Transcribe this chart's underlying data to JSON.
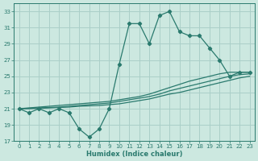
{
  "xlabel": "Humidex (Indice chaleur)",
  "bg_color": "#cce8e0",
  "grid_color": "#aacfc8",
  "line_color": "#2a7a6e",
  "x_data": [
    0,
    1,
    2,
    3,
    4,
    5,
    6,
    7,
    8,
    9,
    10,
    11,
    12,
    13,
    14,
    15,
    16,
    17,
    18,
    19,
    20,
    21,
    22,
    23
  ],
  "y_main": [
    21,
    20.5,
    21,
    20.5,
    21,
    20.5,
    18.5,
    17.5,
    18.5,
    21,
    26.5,
    31.5,
    31.5,
    29.0,
    32.5,
    33.0,
    30.5,
    30.0,
    30.0,
    28.5,
    27.0,
    25.0,
    25.5,
    25.5
  ],
  "y_line1": [
    21,
    21.1,
    21.2,
    21.3,
    21.4,
    21.5,
    21.6,
    21.7,
    21.8,
    21.9,
    22.1,
    22.3,
    22.5,
    22.8,
    23.2,
    23.6,
    24.0,
    24.4,
    24.7,
    25.0,
    25.3,
    25.5,
    25.5,
    25.5
  ],
  "y_line2": [
    21,
    21.05,
    21.1,
    21.15,
    21.2,
    21.3,
    21.4,
    21.5,
    21.6,
    21.7,
    21.9,
    22.1,
    22.3,
    22.5,
    22.8,
    23.2,
    23.5,
    23.8,
    24.1,
    24.4,
    24.7,
    25.0,
    25.2,
    25.3
  ],
  "y_line3": [
    21,
    21.0,
    21.05,
    21.1,
    21.15,
    21.2,
    21.3,
    21.35,
    21.4,
    21.5,
    21.6,
    21.8,
    22.0,
    22.2,
    22.5,
    22.8,
    23.0,
    23.3,
    23.6,
    23.9,
    24.2,
    24.5,
    24.8,
    25.0
  ],
  "ylim": [
    17,
    34
  ],
  "yticks": [
    17,
    19,
    21,
    23,
    25,
    27,
    29,
    31,
    33
  ],
  "xlim": [
    -0.5,
    23.5
  ],
  "xticks": [
    0,
    1,
    2,
    3,
    4,
    5,
    6,
    7,
    8,
    9,
    10,
    11,
    12,
    13,
    14,
    15,
    16,
    17,
    18,
    19,
    20,
    21,
    22,
    23
  ],
  "tick_fontsize": 5,
  "xlabel_fontsize": 6
}
